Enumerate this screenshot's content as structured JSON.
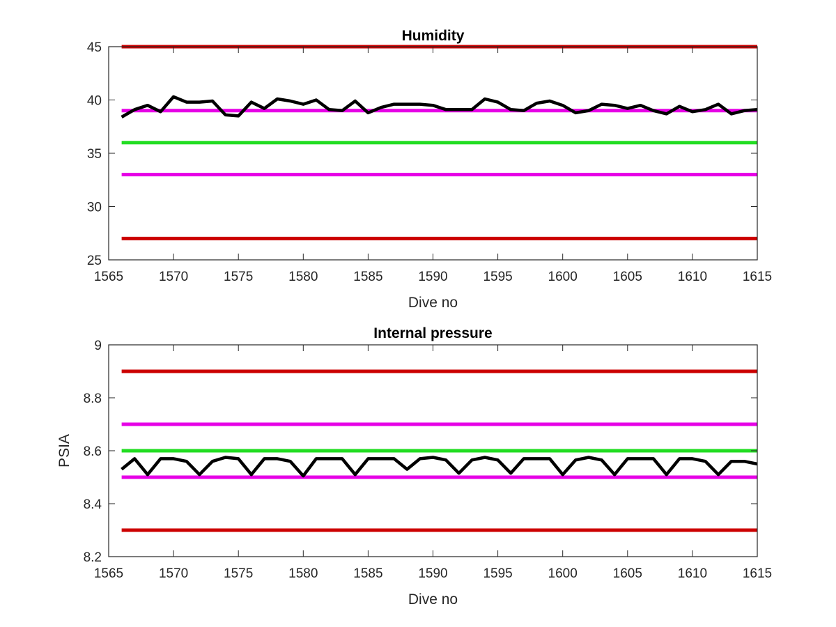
{
  "chart_data": [
    {
      "type": "line",
      "title": "Humidity",
      "xlabel": "Dive no",
      "ylabel": "",
      "xlim": [
        1565,
        1615
      ],
      "ylim": [
        25,
        45
      ],
      "xticks": [
        1565,
        1570,
        1575,
        1580,
        1585,
        1590,
        1595,
        1600,
        1605,
        1610,
        1615
      ],
      "yticks": [
        25,
        30,
        35,
        40,
        45
      ],
      "grid": false,
      "thresholds": [
        {
          "value": 45,
          "color": "#cc0000"
        },
        {
          "value": 39,
          "color": "#e600e6"
        },
        {
          "value": 36,
          "color": "#22dd22"
        },
        {
          "value": 33,
          "color": "#e600e6"
        },
        {
          "value": 27,
          "color": "#cc0000"
        }
      ],
      "series": [
        {
          "color": "#000000",
          "x": [
            1566,
            1567,
            1568,
            1569,
            1570,
            1571,
            1572,
            1573,
            1574,
            1575,
            1576,
            1577,
            1578,
            1579,
            1580,
            1581,
            1582,
            1583,
            1584,
            1585,
            1586,
            1587,
            1588,
            1589,
            1590,
            1591,
            1592,
            1593,
            1594,
            1595,
            1596,
            1597,
            1598,
            1599,
            1600,
            1601,
            1602,
            1603,
            1604,
            1605,
            1606,
            1607,
            1608,
            1609,
            1610,
            1611,
            1612,
            1613,
            1614,
            1615
          ],
          "y": [
            38.4,
            39.1,
            39.5,
            38.9,
            40.3,
            39.8,
            39.8,
            39.9,
            38.6,
            38.5,
            39.8,
            39.2,
            40.1,
            39.9,
            39.6,
            40.0,
            39.1,
            39.0,
            39.9,
            38.8,
            39.3,
            39.6,
            39.6,
            39.6,
            39.5,
            39.1,
            39.1,
            39.1,
            40.1,
            39.8,
            39.1,
            39.0,
            39.7,
            39.9,
            39.5,
            38.8,
            39.0,
            39.6,
            39.5,
            39.2,
            39.5,
            39.0,
            38.7,
            39.4,
            38.9,
            39.1,
            39.6,
            38.7,
            39.0,
            39.1
          ]
        }
      ]
    },
    {
      "type": "line",
      "title": "Internal pressure",
      "xlabel": "Dive no",
      "ylabel": "PSIA",
      "xlim": [
        1565,
        1615
      ],
      "ylim": [
        8.2,
        9.0
      ],
      "xticks": [
        1565,
        1570,
        1575,
        1580,
        1585,
        1590,
        1595,
        1600,
        1605,
        1610,
        1615
      ],
      "yticks": [
        8.2,
        8.4,
        8.6,
        8.8,
        9
      ],
      "grid": false,
      "thresholds": [
        {
          "value": 8.9,
          "color": "#cc0000"
        },
        {
          "value": 8.7,
          "color": "#e600e6"
        },
        {
          "value": 8.6,
          "color": "#22dd22"
        },
        {
          "value": 8.5,
          "color": "#e600e6"
        },
        {
          "value": 8.3,
          "color": "#cc0000"
        }
      ],
      "series": [
        {
          "color": "#000000",
          "x": [
            1566,
            1567,
            1568,
            1569,
            1570,
            1571,
            1572,
            1573,
            1574,
            1575,
            1576,
            1577,
            1578,
            1579,
            1580,
            1581,
            1582,
            1583,
            1584,
            1585,
            1586,
            1587,
            1588,
            1589,
            1590,
            1591,
            1592,
            1593,
            1594,
            1595,
            1596,
            1597,
            1598,
            1599,
            1600,
            1601,
            1602,
            1603,
            1604,
            1605,
            1606,
            1607,
            1608,
            1609,
            1610,
            1611,
            1612,
            1613,
            1614,
            1615
          ],
          "y": [
            8.53,
            8.57,
            8.51,
            8.57,
            8.57,
            8.56,
            8.51,
            8.56,
            8.575,
            8.57,
            8.51,
            8.57,
            8.57,
            8.56,
            8.505,
            8.57,
            8.57,
            8.57,
            8.51,
            8.57,
            8.57,
            8.57,
            8.53,
            8.57,
            8.575,
            8.565,
            8.515,
            8.565,
            8.575,
            8.565,
            8.515,
            8.57,
            8.57,
            8.57,
            8.51,
            8.565,
            8.575,
            8.565,
            8.51,
            8.57,
            8.57,
            8.57,
            8.51,
            8.57,
            8.57,
            8.56,
            8.51,
            8.56,
            8.56,
            8.55
          ]
        }
      ]
    }
  ]
}
